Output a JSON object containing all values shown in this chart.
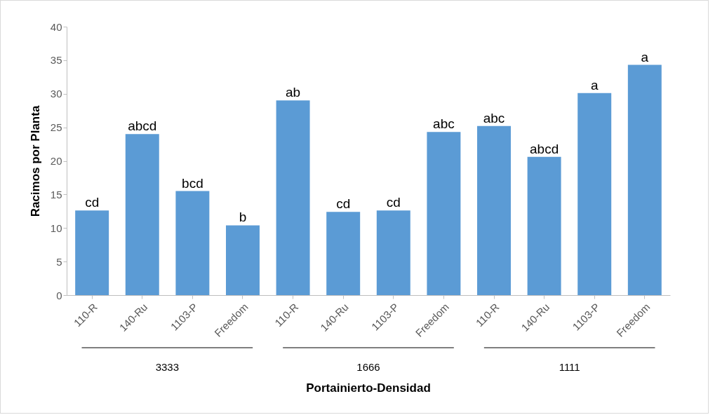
{
  "chart_data": {
    "type": "bar",
    "ylabel": "Racimos por Planta",
    "xlabel": "Portainierto-Densidad",
    "categories": [
      "110-R",
      "140-Ru",
      "1103-P",
      "Freedom",
      "110-R",
      "140-Ru",
      "1103-P",
      "Freedom",
      "110-R",
      "140-Ru",
      "1103-P",
      "Freedom"
    ],
    "values": [
      12.6,
      24.0,
      15.5,
      10.4,
      29.0,
      12.4,
      12.6,
      24.3,
      25.2,
      20.6,
      30.1,
      34.3
    ],
    "value_labels": [
      "cd",
      "abcd",
      "bcd",
      "b",
      "ab",
      "cd",
      "cd",
      "abc",
      "abc",
      "abcd",
      "a",
      "a"
    ],
    "color": "#5b9bd5",
    "ylim": [
      0,
      40
    ],
    "yticks": [
      0,
      5,
      10,
      15,
      20,
      25,
      30,
      35,
      40
    ],
    "grid": false,
    "annotations": [
      "3333",
      "1666",
      "1111"
    ]
  }
}
